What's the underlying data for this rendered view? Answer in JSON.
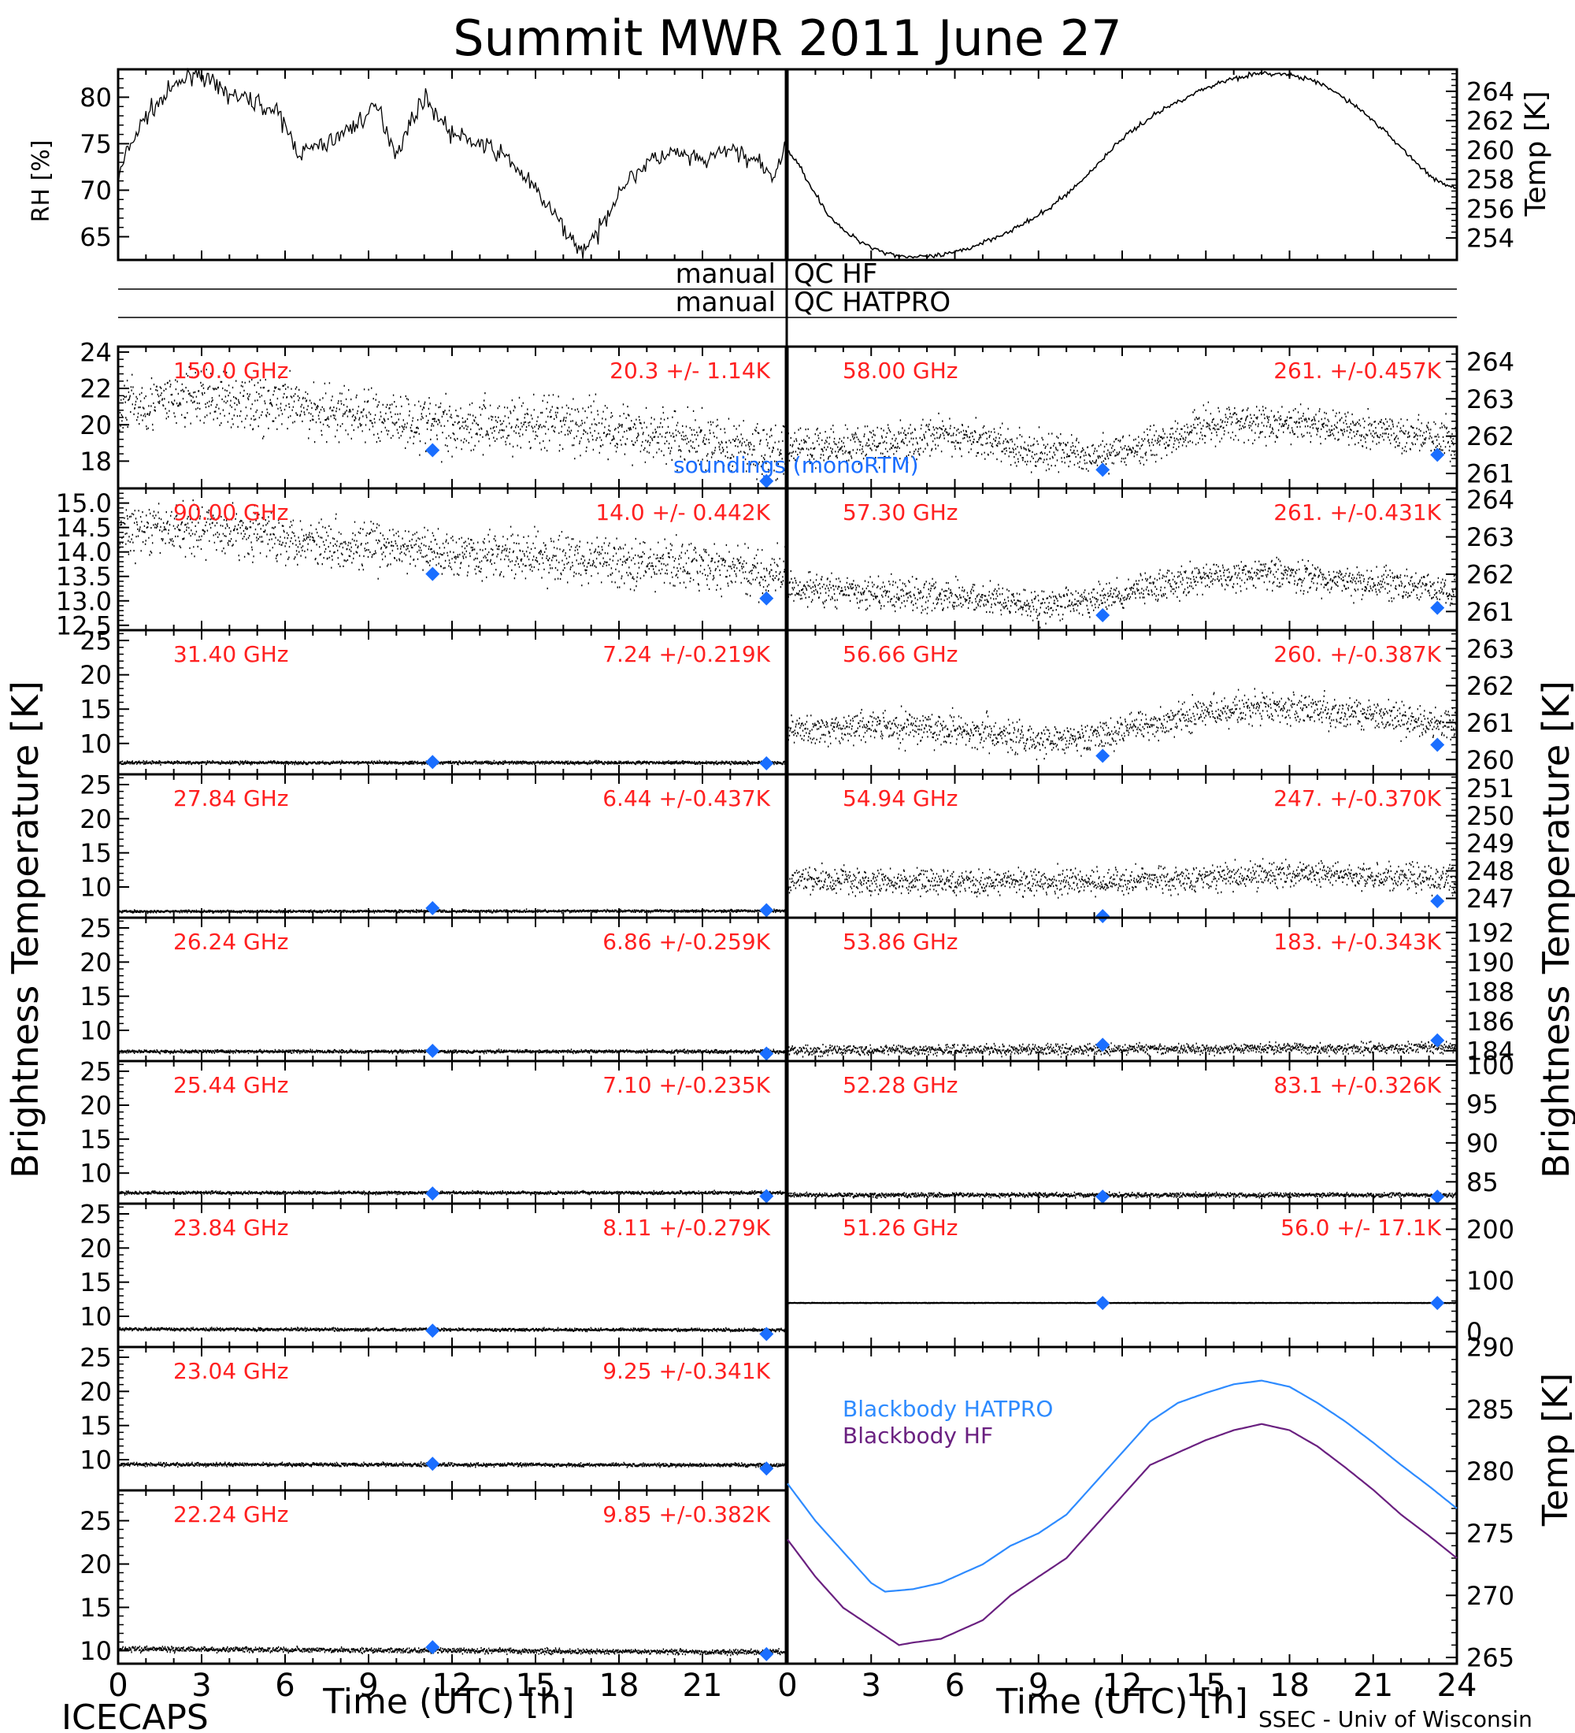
{
  "title": "Summit MWR 2011 June 27",
  "footer": {
    "left": "ICECAPS",
    "right": "SSEC - Univ of Wisconsin",
    "xlabel_left": "Time (UTC) [h]",
    "xlabel_right": "Time (UTC) [h]"
  },
  "side_labels": {
    "left_main": "Brightness Temperature [K]",
    "right_main": "Brightness Temperature [K]",
    "rh": "RH [%]",
    "temp_top": "Temp [K]",
    "temp_bottom": "Temp [K]"
  },
  "qc": {
    "hf_left": "manual",
    "hf_right": "QC HF",
    "hatpro_left": "manual",
    "hatpro_right": "QC HATPRO"
  },
  "x_ticks": [
    "0",
    "3",
    "6",
    "9",
    "12",
    "15",
    "18",
    "21",
    "24"
  ],
  "colors": {
    "data": "#000000",
    "label": "#ff2020",
    "sounding": "#1a6eff",
    "bb_hatpro": "#2e8bff",
    "bb_hf": "#6a2080"
  },
  "sounding_label": "soundings (monoRTM)",
  "legend": {
    "hatpro": "Blackbody HATPRO",
    "hf": "Blackbody HF"
  },
  "chart_data": [
    {
      "type": "line",
      "title": "",
      "ylabel": "RH [%]",
      "x_range": [
        0,
        24
      ],
      "ylim": [
        62.5,
        83
      ],
      "yticks": [
        65,
        70,
        75,
        80
      ],
      "series": [
        {
          "x": [
            0,
            0.3,
            1,
            2,
            2.8,
            3.5,
            4.3,
            5,
            5.8,
            6.5,
            7.5,
            8.5,
            9.3,
            10,
            10.8,
            11,
            12,
            13,
            14,
            15,
            16,
            16.6,
            17.2,
            18,
            19,
            20,
            21,
            22,
            23,
            23.5,
            24
          ],
          "y": [
            71,
            74,
            78,
            81,
            83,
            81,
            80,
            79.5,
            78,
            74,
            75,
            77,
            79,
            74,
            79,
            80,
            76,
            75,
            73.5,
            70,
            66,
            63.5,
            65,
            70,
            73,
            74,
            73,
            74.5,
            73,
            71,
            75
          ]
        }
      ]
    },
    {
      "type": "line",
      "title": "",
      "ylabel": "Temp [K]",
      "x_range": [
        0,
        24
      ],
      "ylim": [
        252.5,
        265.5
      ],
      "yticks": [
        254,
        256,
        258,
        260,
        262,
        264
      ],
      "series": [
        {
          "x": [
            0,
            0.5,
            1,
            1.5,
            2,
            2.5,
            3,
            3.5,
            4,
            4.5,
            5,
            5.5,
            6,
            6.5,
            7,
            7.5,
            8,
            8.5,
            9,
            9.5,
            10,
            10.5,
            11,
            11.5,
            12,
            12.5,
            13,
            13.5,
            14,
            14.5,
            15,
            15.5,
            16,
            16.5,
            17,
            17.5,
            18,
            18.5,
            19,
            19.5,
            20,
            20.5,
            21,
            21.5,
            22,
            22.5,
            23,
            23.5,
            24
          ],
          "y": [
            260,
            258.7,
            257,
            255.5,
            254.5,
            253.9,
            253.4,
            253,
            252.8,
            252.7,
            252.7,
            252.8,
            253,
            253.3,
            253.7,
            254.1,
            254.5,
            255,
            255.5,
            256.2,
            257,
            257.8,
            258.8,
            259.8,
            260.8,
            261.5,
            262.2,
            262.8,
            263.3,
            263.8,
            264.2,
            264.6,
            264.9,
            265.1,
            265.2,
            265.2,
            265.1,
            264.9,
            264.6,
            264.1,
            263.5,
            262.8,
            262,
            261.1,
            260.2,
            259.2,
            258.3,
            257.7,
            257.3
          ]
        }
      ]
    },
    {
      "type": "scatter",
      "freq": "150.0 GHz",
      "stat": "20.3 +/-  1.14K",
      "ylim": [
        16.5,
        24.3
      ],
      "yticks": [
        18,
        20,
        22,
        24
      ],
      "mean_x": [
        0,
        3,
        6,
        9,
        12,
        15,
        18,
        21,
        24
      ],
      "mean_y": [
        21.0,
        21.5,
        21.0,
        20.5,
        20.0,
        20.0,
        19.8,
        19.0,
        18.5
      ],
      "noise": 1.1,
      "soundings": [
        {
          "x": 11.3,
          "y": 18.6
        },
        {
          "x": 23.3,
          "y": 16.9
        }
      ]
    },
    {
      "type": "scatter",
      "freq": "90.00 GHz",
      "stat": "14.0 +/- 0.442K",
      "ylim": [
        12.4,
        15.3
      ],
      "yticks": [
        12.5,
        13.0,
        13.5,
        14.0,
        14.5,
        15.0
      ],
      "mean_x": [
        0,
        3,
        6,
        9,
        12,
        15,
        18,
        21,
        24
      ],
      "mean_y": [
        14.4,
        14.5,
        14.3,
        14.1,
        14.0,
        13.9,
        13.8,
        13.7,
        13.5
      ],
      "noise": 0.35,
      "soundings": [
        {
          "x": 11.3,
          "y": 13.55
        },
        {
          "x": 23.3,
          "y": 13.05
        }
      ]
    },
    {
      "type": "scatter",
      "freq": "31.40 GHz",
      "stat": "7.24 +/-0.219K",
      "ylim": [
        5.5,
        26.5
      ],
      "yticks": [
        10,
        15,
        20,
        25
      ],
      "mean_x": [
        0,
        24
      ],
      "mean_y": [
        7.2,
        7.2
      ],
      "noise": 0.15,
      "soundings": [
        {
          "x": 11.3,
          "y": 7.3
        },
        {
          "x": 23.3,
          "y": 7.1
        }
      ]
    },
    {
      "type": "scatter",
      "freq": "27.84 GHz",
      "stat": "6.44 +/-0.437K",
      "ylim": [
        5.5,
        26.5
      ],
      "yticks": [
        10,
        15,
        20,
        25
      ],
      "mean_x": [
        0,
        24
      ],
      "mean_y": [
        6.4,
        6.5
      ],
      "noise": 0.12,
      "soundings": [
        {
          "x": 11.3,
          "y": 6.9
        },
        {
          "x": 23.3,
          "y": 6.6
        }
      ]
    },
    {
      "type": "scatter",
      "freq": "26.24 GHz",
      "stat": "6.86 +/-0.259K",
      "ylim": [
        5.5,
        26.5
      ],
      "yticks": [
        10,
        15,
        20,
        25
      ],
      "mean_x": [
        0,
        24
      ],
      "mean_y": [
        6.9,
        6.9
      ],
      "noise": 0.15,
      "soundings": [
        {
          "x": 11.3,
          "y": 7.0
        },
        {
          "x": 23.3,
          "y": 6.6
        }
      ]
    },
    {
      "type": "scatter",
      "freq": "25.44 GHz",
      "stat": "7.10 +/-0.235K",
      "ylim": [
        5.5,
        26.5
      ],
      "yticks": [
        10,
        15,
        20,
        25
      ],
      "mean_x": [
        0,
        24
      ],
      "mean_y": [
        7.1,
        7.1
      ],
      "noise": 0.15,
      "soundings": [
        {
          "x": 11.3,
          "y": 7.0
        },
        {
          "x": 23.3,
          "y": 6.6
        }
      ]
    },
    {
      "type": "scatter",
      "freq": "23.84 GHz",
      "stat": "8.11 +/-0.279K",
      "ylim": [
        5.5,
        26.5
      ],
      "yticks": [
        10,
        15,
        20,
        25
      ],
      "mean_x": [
        0,
        24
      ],
      "mean_y": [
        8.1,
        8.0
      ],
      "noise": 0.15,
      "soundings": [
        {
          "x": 11.3,
          "y": 7.9
        },
        {
          "x": 23.3,
          "y": 7.4
        }
      ]
    },
    {
      "type": "scatter",
      "freq": "23.04 GHz",
      "stat": "9.25 +/-0.341K",
      "ylim": [
        5.5,
        26.5
      ],
      "yticks": [
        10,
        15,
        20,
        25
      ],
      "mean_x": [
        0,
        24
      ],
      "mean_y": [
        9.3,
        9.2
      ],
      "noise": 0.18,
      "soundings": [
        {
          "x": 11.3,
          "y": 9.4
        },
        {
          "x": 23.3,
          "y": 8.7
        }
      ]
    },
    {
      "type": "scatter",
      "freq": "22.24 GHz",
      "stat": "9.85 +/-0.382K",
      "ylim": [
        8.5,
        28.5
      ],
      "yticks": [
        10,
        15,
        20,
        25
      ],
      "mean_x": [
        0,
        24
      ],
      "mean_y": [
        10.2,
        9.8
      ],
      "noise": 0.2,
      "soundings": [
        {
          "x": 11.3,
          "y": 10.4
        },
        {
          "x": 23.3,
          "y": 9.6
        }
      ]
    },
    {
      "type": "scatter",
      "freq": "58.00 GHz",
      "stat": "261. +/-0.457K",
      "ylim": [
        260.6,
        264.4
      ],
      "yticks": [
        261,
        262,
        263,
        264
      ],
      "mean_x": [
        0,
        3,
        6,
        9,
        11,
        13,
        15,
        17,
        19,
        21,
        24
      ],
      "mean_y": [
        261.7,
        261.8,
        262.0,
        261.6,
        261.5,
        261.8,
        262.3,
        262.4,
        262.3,
        262.1,
        261.9
      ],
      "noise": 0.35,
      "soundings": [
        {
          "x": 11.3,
          "y": 261.1
        },
        {
          "x": 23.3,
          "y": 261.5
        }
      ]
    },
    {
      "type": "scatter",
      "freq": "57.30 GHz",
      "stat": "261. +/-0.431K",
      "ylim": [
        260.5,
        264.3
      ],
      "yticks": [
        261,
        262,
        263,
        264
      ],
      "mean_x": [
        0,
        3,
        6,
        9,
        11,
        13,
        15,
        17,
        19,
        21,
        24
      ],
      "mean_y": [
        261.6,
        261.5,
        261.4,
        261.2,
        261.3,
        261.7,
        261.9,
        262.0,
        261.9,
        261.8,
        261.5
      ],
      "noise": 0.3,
      "soundings": [
        {
          "x": 11.3,
          "y": 260.9
        },
        {
          "x": 23.3,
          "y": 261.1
        }
      ]
    },
    {
      "type": "scatter",
      "freq": "56.66 GHz",
      "stat": "260. +/-0.387K",
      "ylim": [
        259.6,
        263.5
      ],
      "yticks": [
        260,
        261,
        262,
        263
      ],
      "mean_x": [
        0,
        3,
        6,
        9,
        11,
        13,
        15,
        17,
        19,
        21,
        24
      ],
      "mean_y": [
        260.8,
        260.9,
        260.8,
        260.5,
        260.6,
        260.9,
        261.3,
        261.4,
        261.3,
        261.2,
        260.9
      ],
      "noise": 0.3,
      "soundings": [
        {
          "x": 11.3,
          "y": 260.1
        },
        {
          "x": 23.3,
          "y": 260.4
        }
      ]
    },
    {
      "type": "scatter",
      "freq": "54.94 GHz",
      "stat": "247. +/-0.370K",
      "ylim": [
        246.3,
        251.5
      ],
      "yticks": [
        247,
        248,
        249,
        250,
        251
      ],
      "mean_x": [
        0,
        6,
        12,
        18,
        24
      ],
      "mean_y": [
        247.7,
        247.6,
        247.6,
        247.9,
        247.7
      ],
      "noise": 0.35,
      "soundings": [
        {
          "x": 11.3,
          "y": 246.3
        },
        {
          "x": 23.3,
          "y": 246.9
        }
      ]
    },
    {
      "type": "scatter",
      "freq": "53.86 GHz",
      "stat": "183. +/-0.343K",
      "ylim": [
        183.3,
        193.0
      ],
      "yticks": [
        184,
        186,
        188,
        190,
        192
      ],
      "mean_x": [
        0,
        24
      ],
      "mean_y": [
        184.0,
        184.2
      ],
      "noise": 0.25,
      "soundings": [
        {
          "x": 11.3,
          "y": 184.4
        },
        {
          "x": 23.3,
          "y": 184.7
        }
      ]
    },
    {
      "type": "scatter",
      "freq": "52.28 GHz",
      "stat": "83.1 +/-0.326K",
      "ylim": [
        82.2,
        100.5
      ],
      "yticks": [
        85,
        90,
        95,
        100
      ],
      "mean_x": [
        0,
        24
      ],
      "mean_y": [
        83.3,
        83.3
      ],
      "noise": 0.2,
      "soundings": [
        {
          "x": 11.3,
          "y": 83.1
        },
        {
          "x": 23.3,
          "y": 83.1
        }
      ]
    },
    {
      "type": "scatter",
      "freq": "51.26 GHz",
      "stat": "56.0 +/- 17.1K",
      "ylim": [
        -30,
        250
      ],
      "yticks": [
        0,
        100,
        200
      ],
      "mean_x": [
        0,
        24
      ],
      "mean_y": [
        56,
        56
      ],
      "noise": 0.3,
      "soundings": [
        {
          "x": 11.3,
          "y": 56
        },
        {
          "x": 23.3,
          "y": 56
        }
      ]
    },
    {
      "type": "line",
      "ylabel": "Temp [K]",
      "ylim": [
        264.5,
        290
      ],
      "yticks": [
        265,
        270,
        275,
        280,
        285,
        290
      ],
      "series": [
        {
          "name": "Blackbody HATPRO",
          "x": [
            0,
            1,
            2,
            3,
            3.5,
            4.5,
            5.5,
            7,
            8,
            9,
            10,
            11,
            12,
            13,
            14,
            15,
            16,
            17,
            18,
            19,
            20,
            21,
            22,
            23,
            24
          ],
          "y": [
            279,
            276,
            273.5,
            271,
            270.3,
            270.5,
            271,
            272.5,
            274,
            275,
            276.5,
            279,
            281.5,
            284,
            285.5,
            286.3,
            287,
            287.3,
            286.8,
            285.5,
            284,
            282.3,
            280.5,
            278.8,
            277
          ]
        },
        {
          "name": "Blackbody HF",
          "x": [
            0,
            1,
            2,
            3,
            4,
            4.5,
            5.5,
            7,
            8,
            9,
            10,
            11,
            12,
            13,
            14,
            15,
            16,
            17,
            18,
            19,
            20,
            21,
            22,
            23,
            24
          ],
          "y": [
            274.5,
            271.5,
            269,
            267.5,
            266,
            266.2,
            266.5,
            268,
            270,
            271.5,
            273,
            275.5,
            278,
            280.5,
            281.5,
            282.5,
            283.3,
            283.8,
            283.3,
            282,
            280.3,
            278.5,
            276.5,
            274.8,
            273
          ]
        }
      ]
    }
  ]
}
